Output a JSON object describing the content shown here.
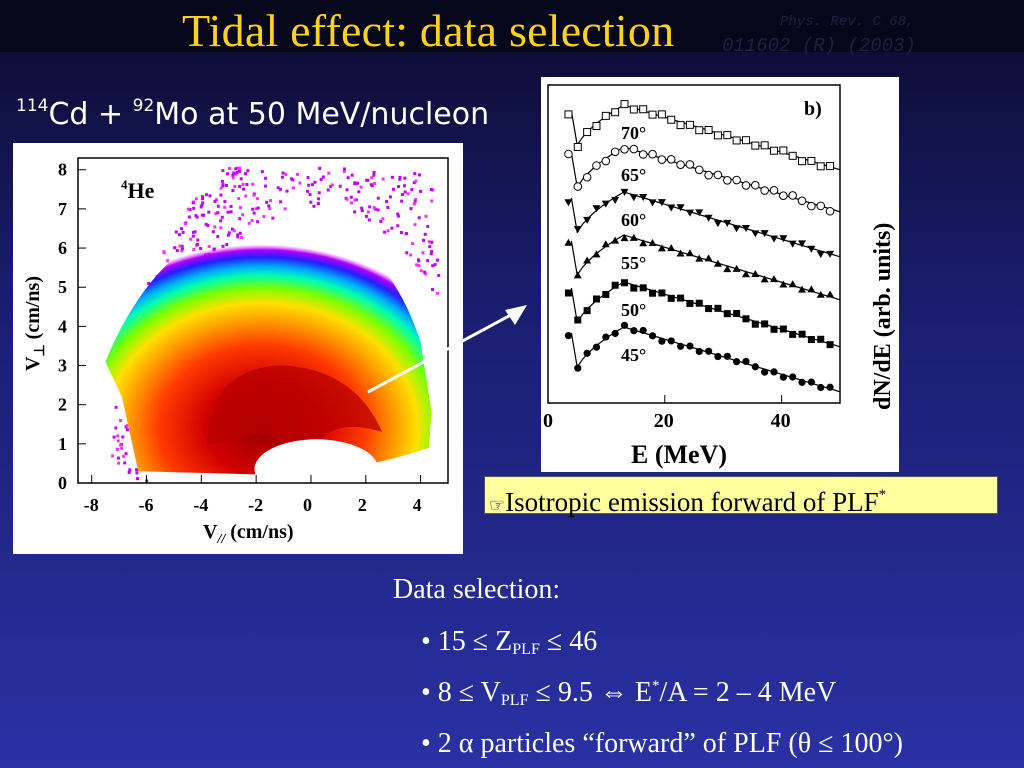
{
  "slide": {
    "title": "Tidal effect: data selection",
    "reference": {
      "line1": "Phys. Rev. C 68,",
      "line2": "011602 (R) (2003)"
    },
    "reaction": {
      "mass1": "114",
      "elem1": "Cd + ",
      "mass2": "92",
      "elem2": "Mo at 50 MeV/nucleon"
    },
    "caption": {
      "icon": "pointing-hand-icon",
      "text": "Isotropic emission forward of PLF",
      "sup": "*"
    },
    "data_selection": {
      "heading": "Data selection:",
      "b1": {
        "pre": "• 15 ≤ Z",
        "sub": "PLF",
        "post": " ≤ 46"
      },
      "b2": {
        "pre": "• 8 ≤ V",
        "sub": "PLF",
        "mid": " ≤ 9.5 ⇔ E",
        "sup": "*",
        "post": "/A = 2 – 4 MeV"
      },
      "b3": {
        "text": "• 2 α particles “forward” of PLF (θ ≤ 100°)"
      }
    },
    "colors": {
      "title": "#ffd21a",
      "caption_bg": "#ffff9e",
      "text": "#ffffff"
    }
  },
  "chart_data": [
    {
      "type": "heatmap",
      "label": "4He",
      "xlabel": "V//  (cm/ns)",
      "ylabel": "V⊥ (cm/ns)",
      "xlim": [
        -8.5,
        5
      ],
      "ylim": [
        0,
        8.3
      ],
      "xticks": [
        "-8",
        "-6",
        "-4",
        "-2",
        "0",
        "2",
        "4"
      ],
      "yticks": [
        "0",
        "1",
        "2",
        "3",
        "4",
        "5",
        "6",
        "7",
        "8"
      ]
    },
    {
      "type": "scatter",
      "panel_label": "b)",
      "xlabel": "E (MeV)",
      "ylabel": "dN/dE (arb. units)",
      "xlim": [
        0,
        50
      ],
      "xticks": [
        "0",
        "20",
        "40"
      ],
      "series": [
        {
          "name": "70°",
          "marker": "square-open"
        },
        {
          "name": "65°",
          "marker": "circle-open"
        },
        {
          "name": "60°",
          "marker": "triangle-down"
        },
        {
          "name": "55°",
          "marker": "triangle-up"
        },
        {
          "name": "50°",
          "marker": "square"
        },
        {
          "name": "45°",
          "marker": "circle"
        }
      ]
    }
  ]
}
